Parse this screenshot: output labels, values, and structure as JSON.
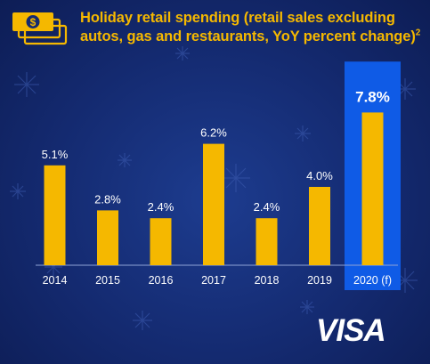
{
  "header": {
    "title": "Holiday retail spending (retail sales excluding autos, gas and restaurants, YoY percent change)",
    "title_footnote": "2",
    "icon": "money-stack-icon"
  },
  "brand": {
    "logo_text": "VISA"
  },
  "colors": {
    "background": "#142a70",
    "bar": "#f5b800",
    "highlight_panel": "#0f5be6",
    "text": "#ffffff",
    "title": "#f5b800"
  },
  "chart_data": {
    "type": "bar",
    "title": "Holiday retail spending (retail sales excluding autos, gas and restaurants, YoY percent change)",
    "categories": [
      "2014",
      "2015",
      "2016",
      "2017",
      "2018",
      "2019",
      "2020 (f)"
    ],
    "values": [
      5.1,
      2.8,
      2.4,
      6.2,
      2.4,
      4.0,
      7.8
    ],
    "value_labels": [
      "5.1%",
      "2.8%",
      "2.4%",
      "6.2%",
      "2.4%",
      "4.0%",
      "7.8%"
    ],
    "highlighted_category": "2020 (f)",
    "xlabel": "",
    "ylabel": "",
    "ylim": [
      0,
      10
    ],
    "grid": false,
    "legend": "none"
  }
}
